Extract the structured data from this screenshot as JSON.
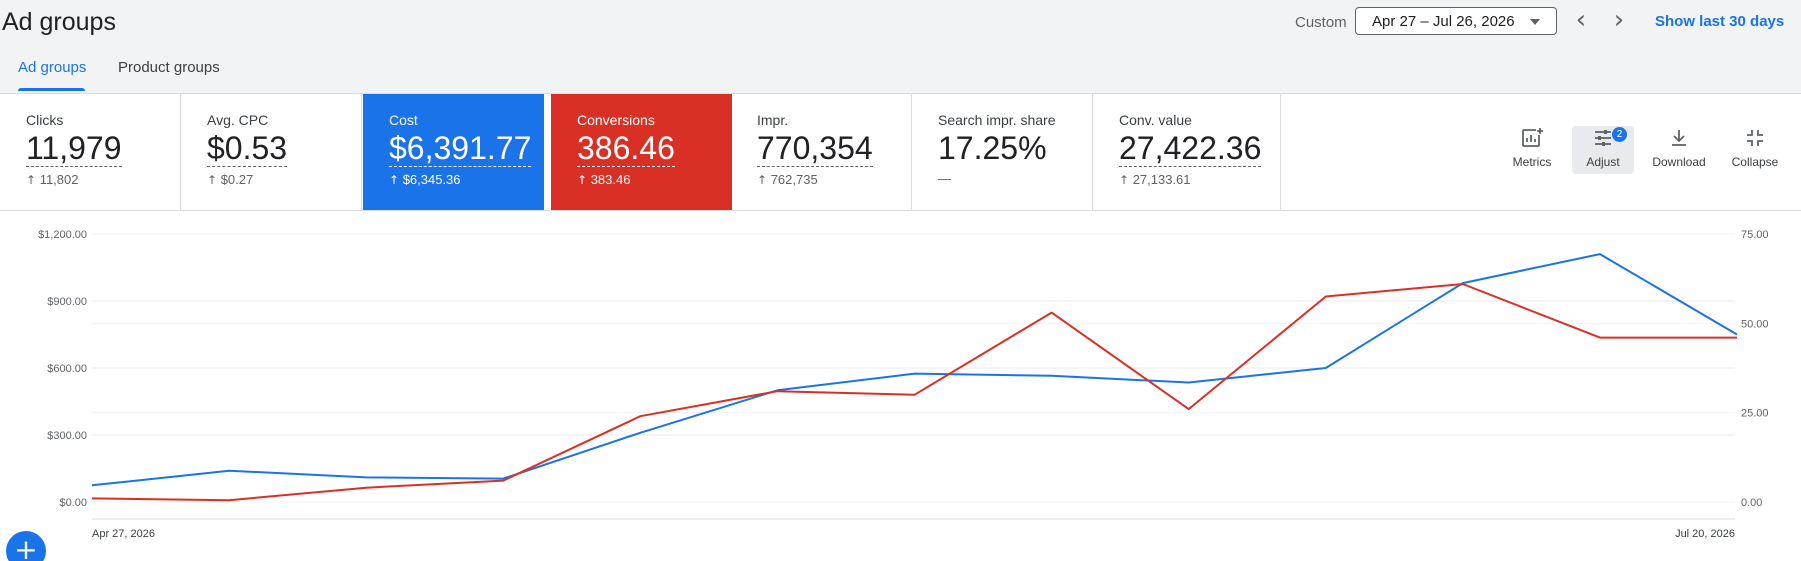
{
  "header": {
    "title": "Ad groups",
    "custom_label": "Custom",
    "date_range": "Apr 27 – Jul 26, 2026",
    "prev_icon": "‹",
    "next_icon": "›",
    "show_last_label": "Show last 30 days"
  },
  "tabs": [
    {
      "label": "Ad groups",
      "active": true
    },
    {
      "label": "Product groups",
      "active": false
    }
  ],
  "scorecards": [
    {
      "label": "Clicks",
      "value": "11,979",
      "change": "11,802"
    },
    {
      "label": "Avg. CPC",
      "value": "$0.53",
      "change": "$0.27"
    },
    {
      "label": "Cost",
      "value": "$6,391.77",
      "change": "$6,345.36",
      "color": "#1a73e8"
    },
    {
      "label": "Conversions",
      "value": "386.46",
      "change": "383.46",
      "color": "#d93025"
    },
    {
      "label": "Impr.",
      "value": "770,354",
      "change": "762,735"
    },
    {
      "label": "Search impr. share",
      "value": "17.25%",
      "change": "—"
    },
    {
      "label": "Conv. value",
      "value": "27,422.36",
      "change": "27,133.61"
    }
  ],
  "toolbar": {
    "metrics_label": "Metrics",
    "adjust_label": "Adjust",
    "adjust_badge": "2",
    "download_label": "Download",
    "collapse_label": "Collapse"
  },
  "fab_icon": "+",
  "chart_data": {
    "type": "line",
    "x_labels": [
      "Apr 27, 2026",
      "Jul 20, 2026"
    ],
    "y_left_ticks": [
      "$1,200.00",
      "$900.00",
      "$600.00",
      "$300.00",
      "$0.00"
    ],
    "y_right_ticks": [
      "75.00",
      "50.00",
      "25.00",
      "0.00"
    ],
    "y_left_range": [
      0,
      1200
    ],
    "y_right_range": [
      0,
      75
    ],
    "grid": true,
    "series": [
      {
        "name": "Cost",
        "axis": "left",
        "color": "#1a73e8",
        "values": [
          75,
          140,
          110,
          105,
          310,
          500,
          575,
          565,
          535,
          600,
          980,
          1110,
          750
        ]
      },
      {
        "name": "Conversions",
        "axis": "right",
        "color": "#d93025",
        "values": [
          1,
          0.5,
          4,
          6,
          24,
          31,
          30,
          53,
          26,
          57.5,
          61,
          46,
          46
        ]
      }
    ]
  }
}
